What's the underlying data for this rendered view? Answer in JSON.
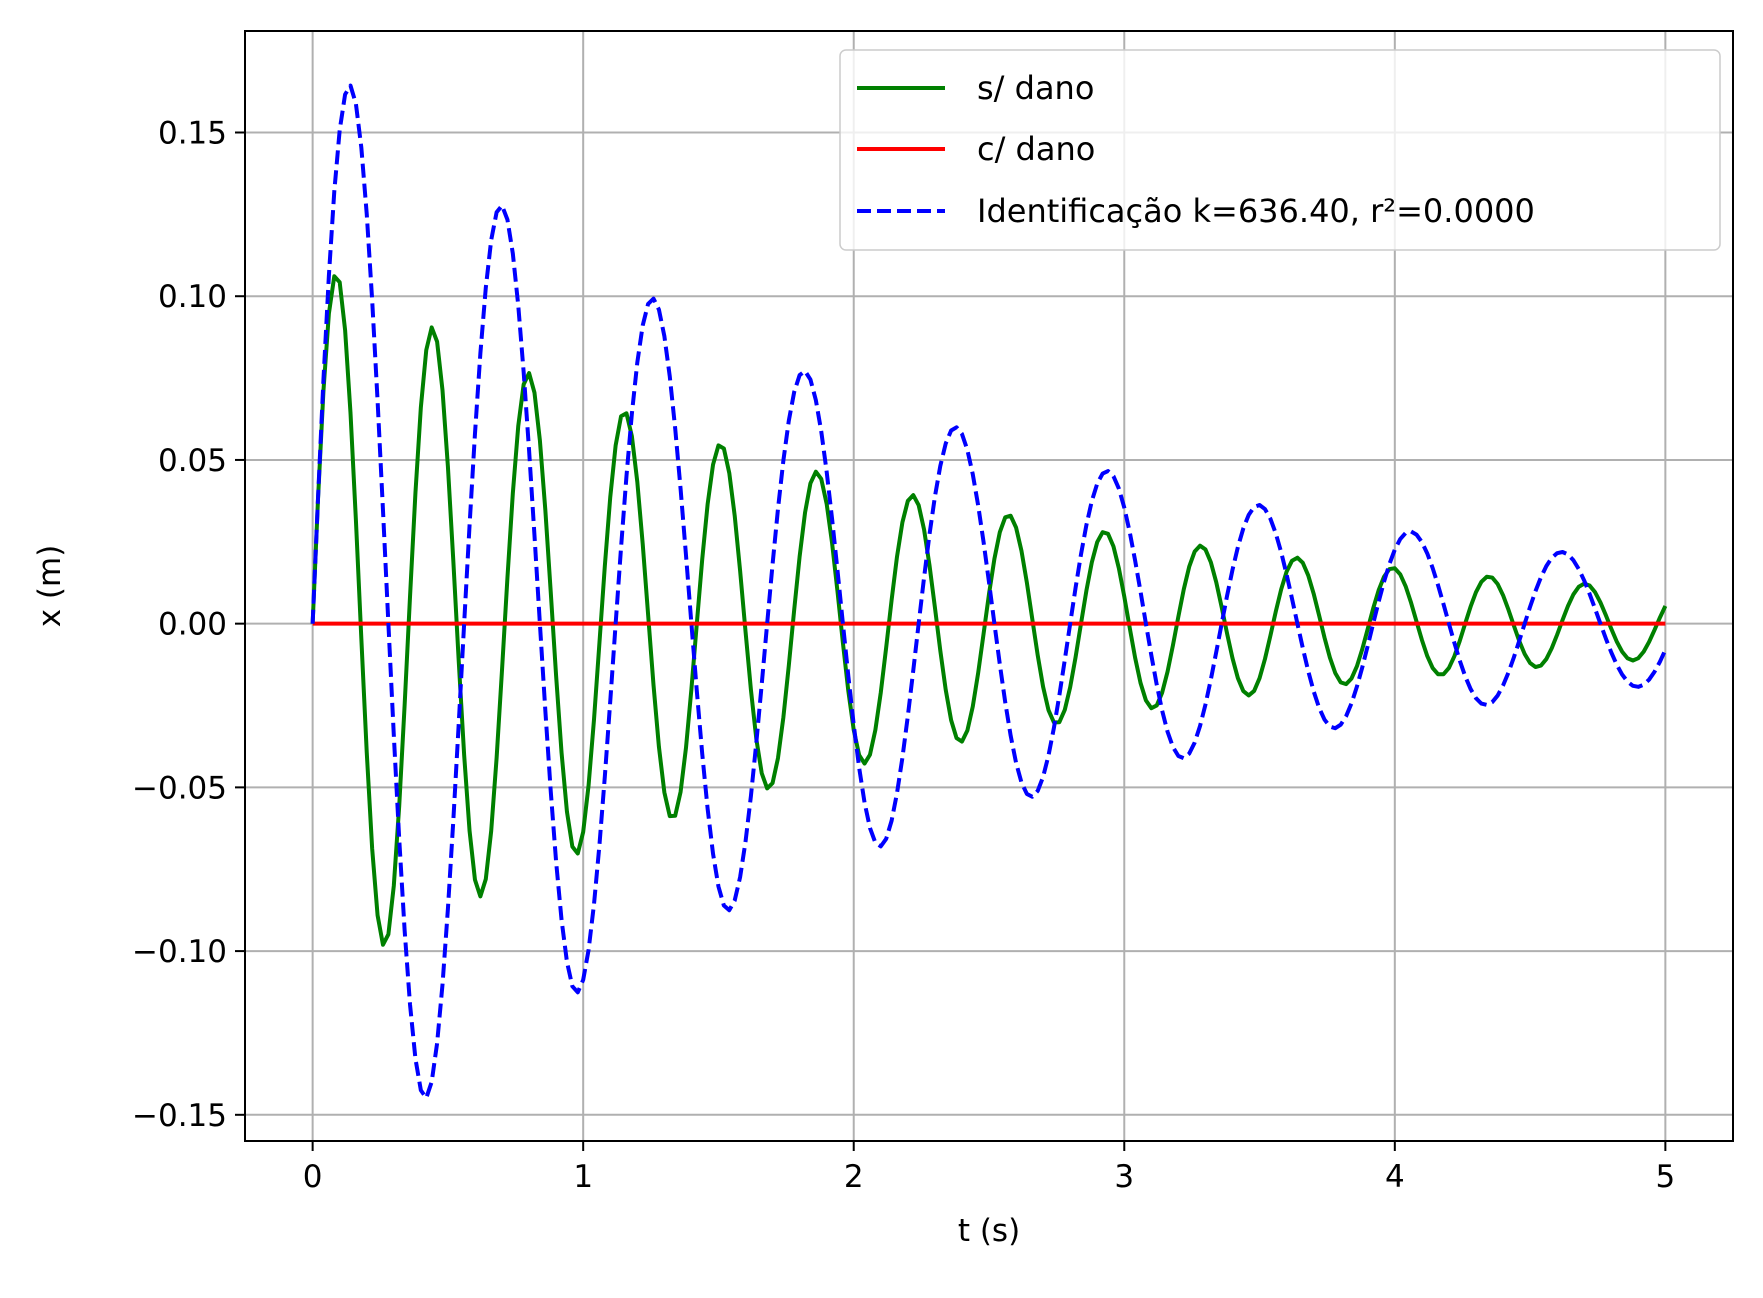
{
  "chart_data": {
    "type": "line",
    "xlabel": "t (s)",
    "ylabel": "x (m)",
    "xlim": [
      -0.25,
      5.25
    ],
    "ylim": [
      -0.158,
      0.181
    ],
    "xticks": [
      0,
      1,
      2,
      3,
      4,
      5
    ],
    "xtick_labels": [
      "0",
      "1",
      "2",
      "3",
      "4",
      "5"
    ],
    "yticks": [
      -0.15,
      -0.1,
      -0.05,
      0.0,
      0.05,
      0.1,
      0.15
    ],
    "ytick_labels": [
      "−0.15",
      "−0.10",
      "−0.05",
      "0.00",
      "0.05",
      "0.10",
      "0.15"
    ],
    "grid": true,
    "legend_position": "top-right",
    "series": [
      {
        "name": "s/ dano",
        "color": "#008000",
        "style": "solid",
        "model": {
          "kind": "damped_sine",
          "amplitude": 0.1115,
          "period": 0.355,
          "decay": 0.47
        },
        "peaks": [
          {
            "t": 0.08,
            "x": 0.105
          },
          {
            "t": 0.26,
            "x": -0.096
          },
          {
            "t": 0.44,
            "x": 0.088
          },
          {
            "t": 0.61,
            "x": -0.08
          },
          {
            "t": 0.79,
            "x": 0.074
          },
          {
            "t": 0.97,
            "x": -0.067
          },
          {
            "t": 1.14,
            "x": 0.062
          },
          {
            "t": 1.32,
            "x": -0.056
          },
          {
            "t": 1.5,
            "x": 0.052
          },
          {
            "t": 1.67,
            "x": -0.047
          },
          {
            "t": 1.85,
            "x": 0.044
          },
          {
            "t": 2.03,
            "x": -0.04
          },
          {
            "t": 2.2,
            "x": 0.037
          },
          {
            "t": 2.38,
            "x": -0.033
          },
          {
            "t": 2.56,
            "x": 0.031
          },
          {
            "t": 2.73,
            "x": -0.028
          },
          {
            "t": 2.91,
            "x": 0.026
          },
          {
            "t": 3.09,
            "x": -0.023
          },
          {
            "t": 3.26,
            "x": 0.022
          },
          {
            "t": 3.44,
            "x": -0.019
          },
          {
            "t": 3.62,
            "x": 0.018
          },
          {
            "t": 3.79,
            "x": -0.016
          },
          {
            "t": 3.97,
            "x": 0.015
          },
          {
            "t": 4.15,
            "x": -0.013
          },
          {
            "t": 4.32,
            "x": 0.013
          },
          {
            "t": 4.5,
            "x": -0.011
          },
          {
            "t": 4.68,
            "x": 0.011
          },
          {
            "t": 4.85,
            "x": -0.009
          },
          {
            "t": 5.0,
            "x": 0.009
          }
        ]
      },
      {
        "name": "c/ dano",
        "color": "#ff0000",
        "style": "solid",
        "model": {
          "kind": "constant",
          "value": 0.0
        }
      },
      {
        "name": "Identificação k=636.40, r²=0.0000",
        "color": "#0000ff",
        "style": "dashed",
        "model": {
          "kind": "damped_sine",
          "amplitude": 0.175,
          "period": 0.56,
          "decay": 0.45
        },
        "peaks": [
          {
            "t": 0.14,
            "x": 0.165
          },
          {
            "t": 0.42,
            "x": -0.143
          },
          {
            "t": 0.7,
            "x": 0.124
          },
          {
            "t": 0.98,
            "x": -0.109
          },
          {
            "t": 1.26,
            "x": 0.095
          },
          {
            "t": 1.53,
            "x": -0.082
          },
          {
            "t": 1.81,
            "x": 0.071
          },
          {
            "t": 2.09,
            "x": -0.062
          },
          {
            "t": 2.37,
            "x": 0.054
          },
          {
            "t": 2.65,
            "x": -0.047
          },
          {
            "t": 2.93,
            "x": 0.04
          },
          {
            "t": 3.21,
            "x": -0.035
          },
          {
            "t": 3.49,
            "x": 0.031
          },
          {
            "t": 3.77,
            "x": -0.027
          },
          {
            "t": 4.05,
            "x": 0.024
          },
          {
            "t": 4.33,
            "x": -0.02
          },
          {
            "t": 4.61,
            "x": 0.018
          },
          {
            "t": 4.89,
            "x": -0.015
          },
          {
            "t": 5.0,
            "x": -0.003
          }
        ]
      }
    ]
  }
}
